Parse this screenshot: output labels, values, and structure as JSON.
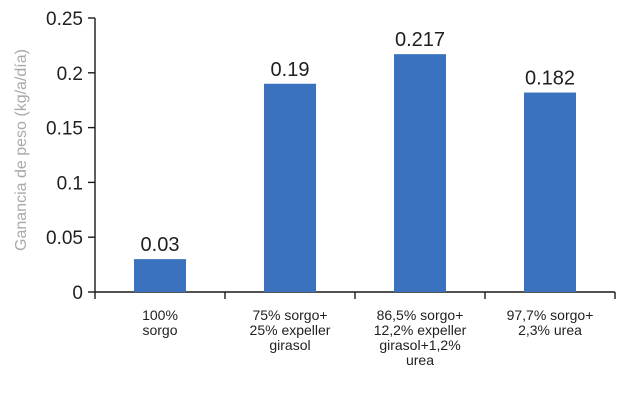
{
  "chart_data": {
    "type": "bar",
    "title": "",
    "xlabel": "",
    "ylabel": "Ganancia de peso (kg/a/día)",
    "ylim": [
      0,
      0.25
    ],
    "yticks": [
      0,
      0.05,
      0.1,
      0.15,
      0.2,
      0.25
    ],
    "ytick_labels": [
      "0",
      "0.05",
      "0.1",
      "0.15",
      "0.2",
      "0.25"
    ],
    "categories": [
      [
        "100%",
        "sorgo"
      ],
      [
        "75% sorgo+",
        "25% expeller",
        "girasol"
      ],
      [
        "86,5% sorgo+",
        "12,2% expeller",
        "girasol+1,2%",
        "urea"
      ],
      [
        "97,7% sorgo+",
        "2,3% urea"
      ]
    ],
    "values": [
      0.03,
      0.19,
      0.217,
      0.182
    ],
    "data_labels": [
      "0.03",
      "0.19",
      "0.217",
      "0.182"
    ],
    "bar_color": "#3a72c0",
    "grid": false,
    "legend": "none"
  }
}
